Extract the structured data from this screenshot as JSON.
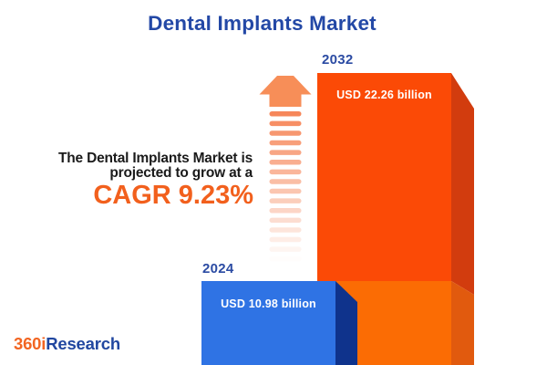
{
  "title": "Dental Implants Market",
  "annotation": {
    "line1": "The Dental Implants Market is",
    "line2": "projected to grow at a",
    "cagr": "CAGR 9.23%"
  },
  "bars": {
    "b2024": {
      "year": "2024",
      "value_label": "USD 10.98 billion"
    },
    "b2032": {
      "year": "2032",
      "value_label": "USD 22.26 billion"
    }
  },
  "logo": {
    "part1": "360i",
    "part2": "Research"
  },
  "colors": {
    "title_blue": "#2348A6",
    "year_label_blue": "#2B4BA3",
    "text_dark": "#1A1A1A",
    "cagr_orange": "#F2601D",
    "bar2032_front_top": "#FB4A06",
    "bar2032_side_top": "#D23C0E",
    "bar2032_front_bottom": "#FB6C04",
    "bar2032_side_bottom": "#E15A0E",
    "bar2024_front": "#2F73E4",
    "bar2024_side": "#0F338C",
    "arrow_head": "#F78E58",
    "arrow_shaft_base": "#F6875A",
    "value_text_white": "#FFFFFF",
    "logo_orange": "#F26522",
    "logo_blue": "#2147A0"
  },
  "chart_data": {
    "type": "bar",
    "title": "Dental Implants Market",
    "categories": [
      "2024",
      "2032"
    ],
    "values": [
      10.98,
      22.26
    ],
    "value_unit": "USD billion",
    "value_labels": [
      "USD 10.98 billion",
      "USD 22.26 billion"
    ],
    "series_colors": [
      "#2F73E4",
      "#FB4A06"
    ],
    "annotation": "The Dental Implants Market is projected to grow at a CAGR 9.23%",
    "cagr_percent": 9.23,
    "orientation": "vertical",
    "style": "3d-infographic",
    "legend": "none",
    "grid": "off"
  }
}
